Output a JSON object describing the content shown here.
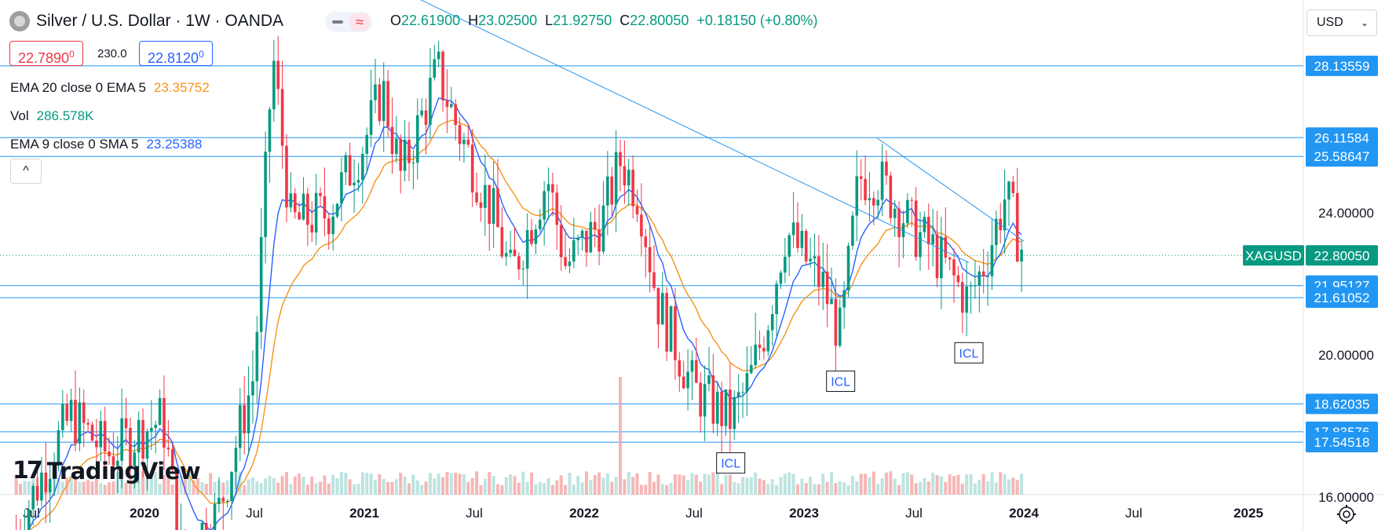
{
  "header": {
    "symbol_title": "Silver / U.S. Dollar · 1W · OANDA",
    "ohlc": [
      {
        "k": "O",
        "v": "22.61900"
      },
      {
        "k": "H",
        "v": "23.02500"
      },
      {
        "k": "L",
        "v": "21.92750"
      },
      {
        "k": "C",
        "v": "22.80050"
      },
      {
        "k": "",
        "v": "+0.18150 (+0.80%)"
      }
    ],
    "toggle_glyph": "≈",
    "bid": "22.7890",
    "bid_sup": "0",
    "spread": "230.0",
    "ask": "22.8120",
    "ask_sup": "0"
  },
  "indicators": [
    {
      "label": "EMA 20 close 0 EMA 5",
      "value": "23.35752",
      "color": "#f7931a"
    },
    {
      "label": "Vol",
      "value": "286.578K",
      "color": "#089981"
    },
    {
      "label": "EMA 9 close 0 SMA 5",
      "value": "23.25388",
      "color": "#2962ff"
    }
  ],
  "currency": "USD",
  "collapse_glyph": "^",
  "logo_text": "TradingView",
  "logo_mark": "17",
  "icons": {
    "settings": "gear-icon",
    "collapse": "chevron-up-icon",
    "symbol": "silver-coin-icon"
  },
  "colors": {
    "up": "#089981",
    "down": "#f23645",
    "ema20": "#f7931a",
    "ema9": "#2962ff",
    "level": "#2196f3",
    "current": "#089981"
  },
  "chart_data": {
    "type": "candlestick",
    "symbol": "XAGUSD",
    "current_price": "22.80050",
    "ylim": [
      16.0,
      31.0
    ],
    "x_ticks": [
      "Jul",
      "2020",
      "Jul",
      "2021",
      "Jul",
      "2022",
      "Jul",
      "2023",
      "Jul",
      "2024",
      "Jul",
      "2025"
    ],
    "y_ticks": [
      "24.00000",
      "20.00000",
      "16.00000"
    ],
    "levels": [
      "28.13559",
      "26.11584",
      "25.58647",
      "21.95127",
      "21.61052",
      "18.62035",
      "17.83576",
      "17.54518"
    ],
    "annotations": [
      {
        "label": "ICL",
        "date": "2022-09",
        "price": 17.6
      },
      {
        "label": "ICL",
        "date": "2023-03",
        "price": 19.9
      },
      {
        "label": "ICL",
        "date": "2023-10",
        "price": 20.7
      }
    ],
    "trendlines": [
      {
        "from": [
          "2020-12",
          31.0
        ],
        "to": [
          "2023-10",
          22.6
        ]
      },
      {
        "from": [
          "2023-05",
          26.1
        ],
        "to": [
          "2024-01",
          23.2
        ]
      }
    ],
    "weekly_close_path": [
      {
        "date": "2019-06",
        "close": 15.0
      },
      {
        "date": "2019-08",
        "close": 17.3
      },
      {
        "date": "2019-09",
        "close": 18.3
      },
      {
        "date": "2019-11",
        "close": 17.2
      },
      {
        "date": "2020-01",
        "close": 17.9
      },
      {
        "date": "2020-02",
        "close": 18.2
      },
      {
        "date": "2020-03",
        "close": 14.5
      },
      {
        "date": "2020-05",
        "close": 15.5
      },
      {
        "date": "2020-07",
        "close": 19.5
      },
      {
        "date": "2020-08",
        "close": 28.5
      },
      {
        "date": "2020-09",
        "close": 23.7
      },
      {
        "date": "2020-11",
        "close": 24.0
      },
      {
        "date": "2021-01",
        "close": 26.0
      },
      {
        "date": "2021-02",
        "close": 27.5
      },
      {
        "date": "2021-03",
        "close": 25.0
      },
      {
        "date": "2021-05",
        "close": 28.0
      },
      {
        "date": "2021-06",
        "close": 26.5
      },
      {
        "date": "2021-08",
        "close": 24.0
      },
      {
        "date": "2021-09",
        "close": 22.2
      },
      {
        "date": "2021-11",
        "close": 25.0
      },
      {
        "date": "2021-12",
        "close": 22.5
      },
      {
        "date": "2022-02",
        "close": 23.8
      },
      {
        "date": "2022-03",
        "close": 25.5
      },
      {
        "date": "2022-04",
        "close": 24.5
      },
      {
        "date": "2022-05",
        "close": 21.5
      },
      {
        "date": "2022-07",
        "close": 19.0
      },
      {
        "date": "2022-09",
        "close": 18.2
      },
      {
        "date": "2022-10",
        "close": 19.2
      },
      {
        "date": "2022-11",
        "close": 21.0
      },
      {
        "date": "2022-12",
        "close": 23.5
      },
      {
        "date": "2023-02",
        "close": 22.0
      },
      {
        "date": "2023-03",
        "close": 20.5
      },
      {
        "date": "2023-04",
        "close": 25.0
      },
      {
        "date": "2023-05",
        "close": 25.0
      },
      {
        "date": "2023-07",
        "close": 23.5
      },
      {
        "date": "2023-08",
        "close": 23.0
      },
      {
        "date": "2023-10",
        "close": 21.5
      },
      {
        "date": "2023-11",
        "close": 22.8
      },
      {
        "date": "2023-12",
        "close": 24.5
      },
      {
        "date": "2024-01",
        "close": 22.8
      }
    ],
    "volume": {
      "spike_date": "2022-03",
      "spike_level": "very high"
    }
  }
}
